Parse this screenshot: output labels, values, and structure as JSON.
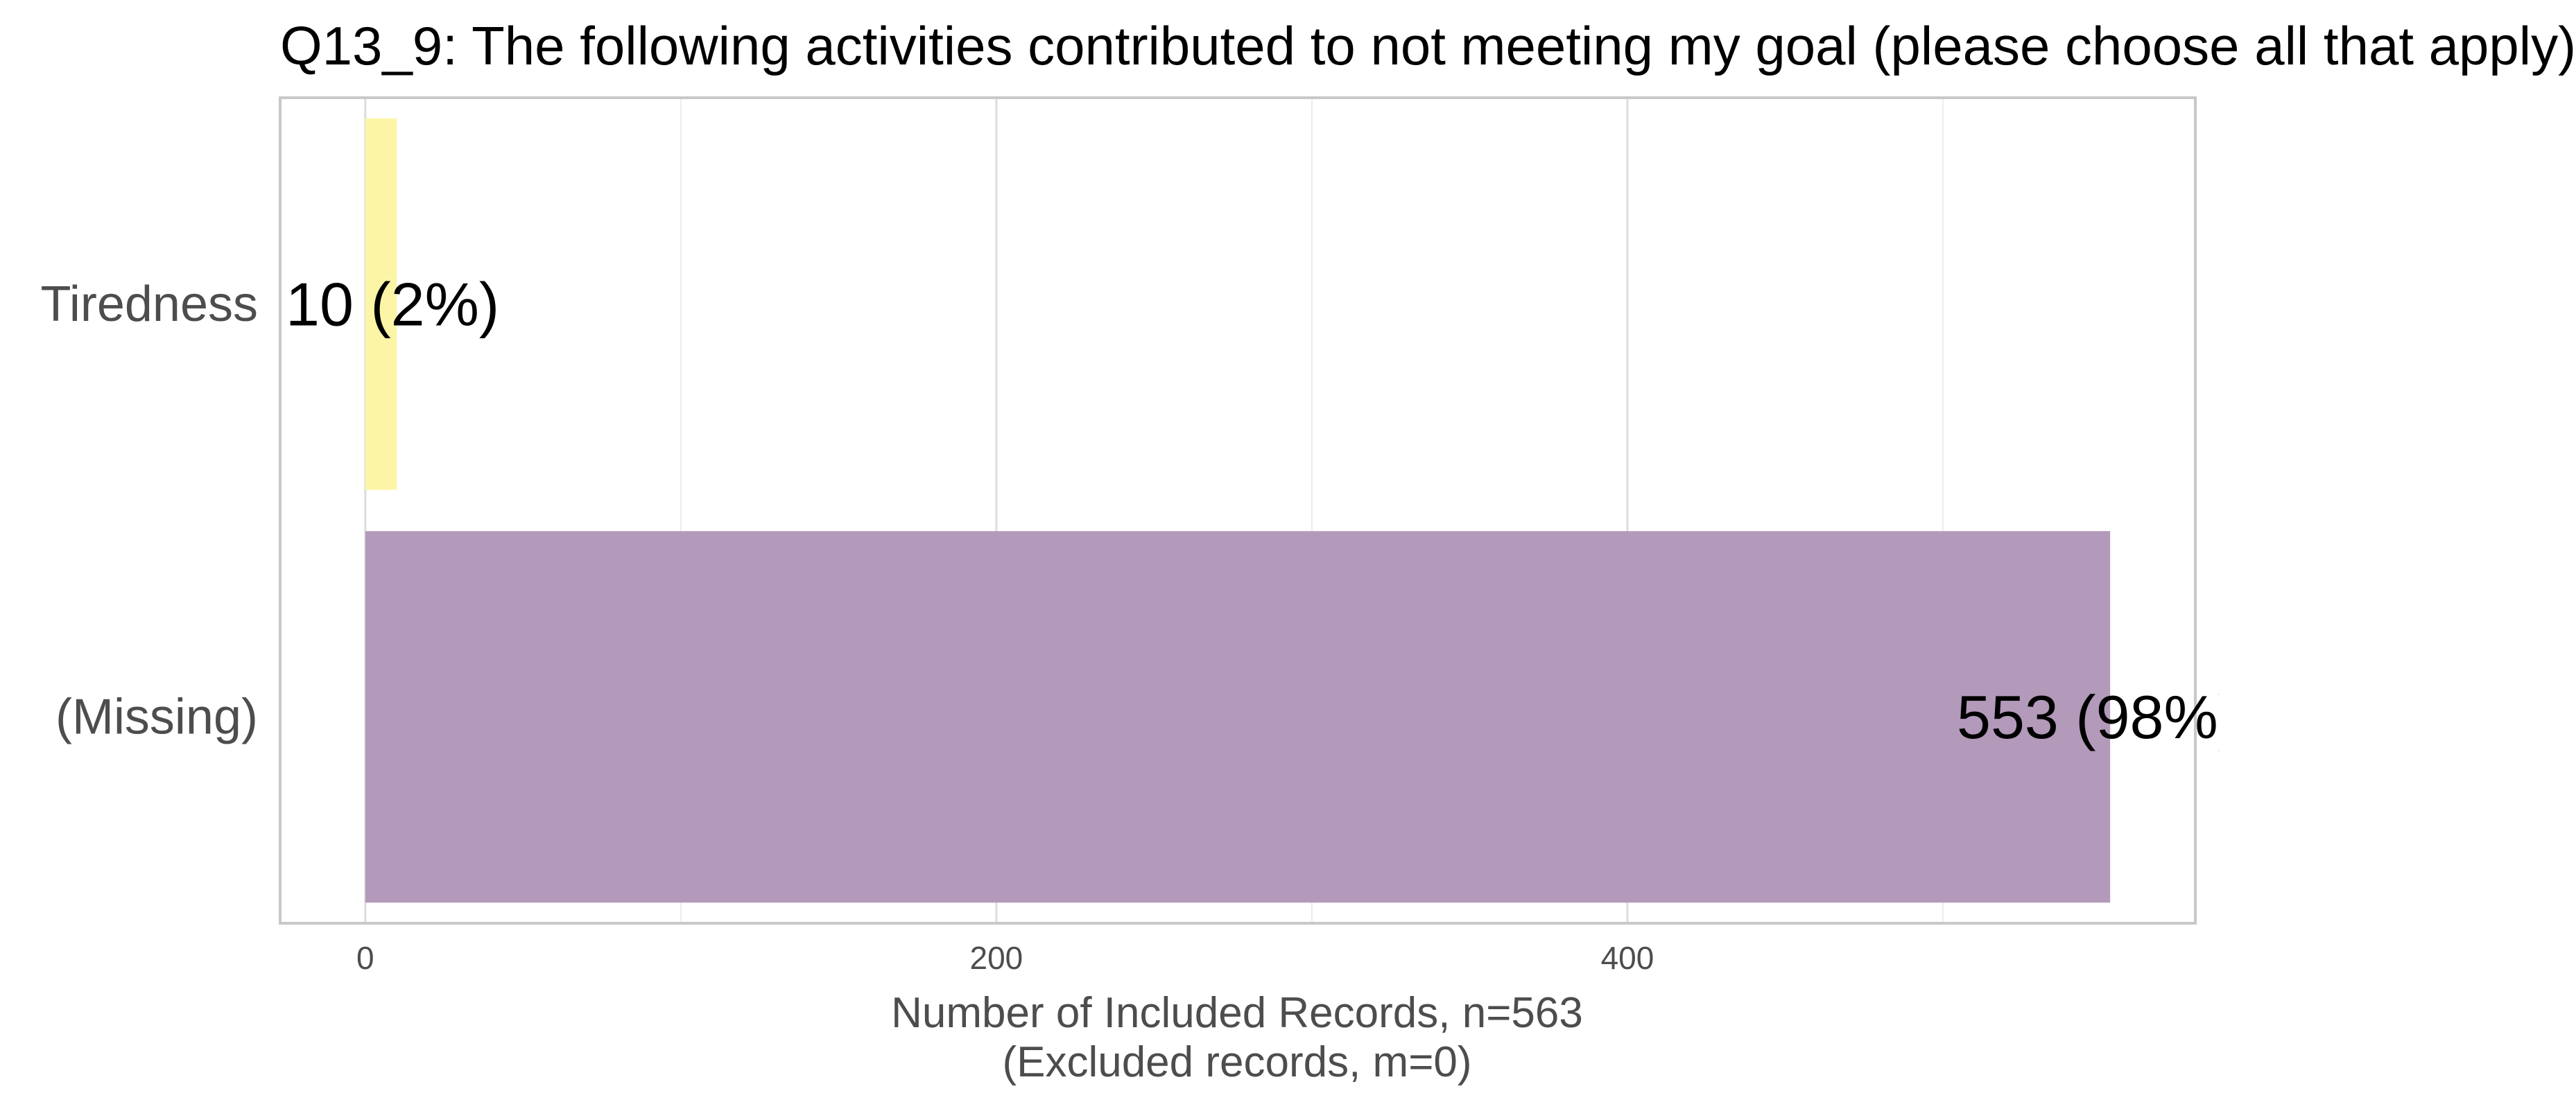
{
  "chart_data": {
    "type": "bar",
    "orientation": "horizontal",
    "title": "Q13_9: The following activities contributed to not meeting my goal (please choose all that apply)",
    "categories": [
      "Tiredness",
      "(Missing)"
    ],
    "values": [
      10,
      553
    ],
    "bar_labels": [
      "10 (2%)",
      "553 (98%)"
    ],
    "colors": [
      "#fdf5a6",
      "#b399ba"
    ],
    "x_ticks": [
      0,
      200,
      400
    ],
    "x_tick_labels": [
      "0",
      "200",
      "400"
    ],
    "xlabel": "Number of Included Records, n=563",
    "xlabel_sub": "(Excluded records, m=0)",
    "ylabel": "",
    "xlim": [
      -27,
      580
    ],
    "grid": true,
    "legend": "none"
  }
}
